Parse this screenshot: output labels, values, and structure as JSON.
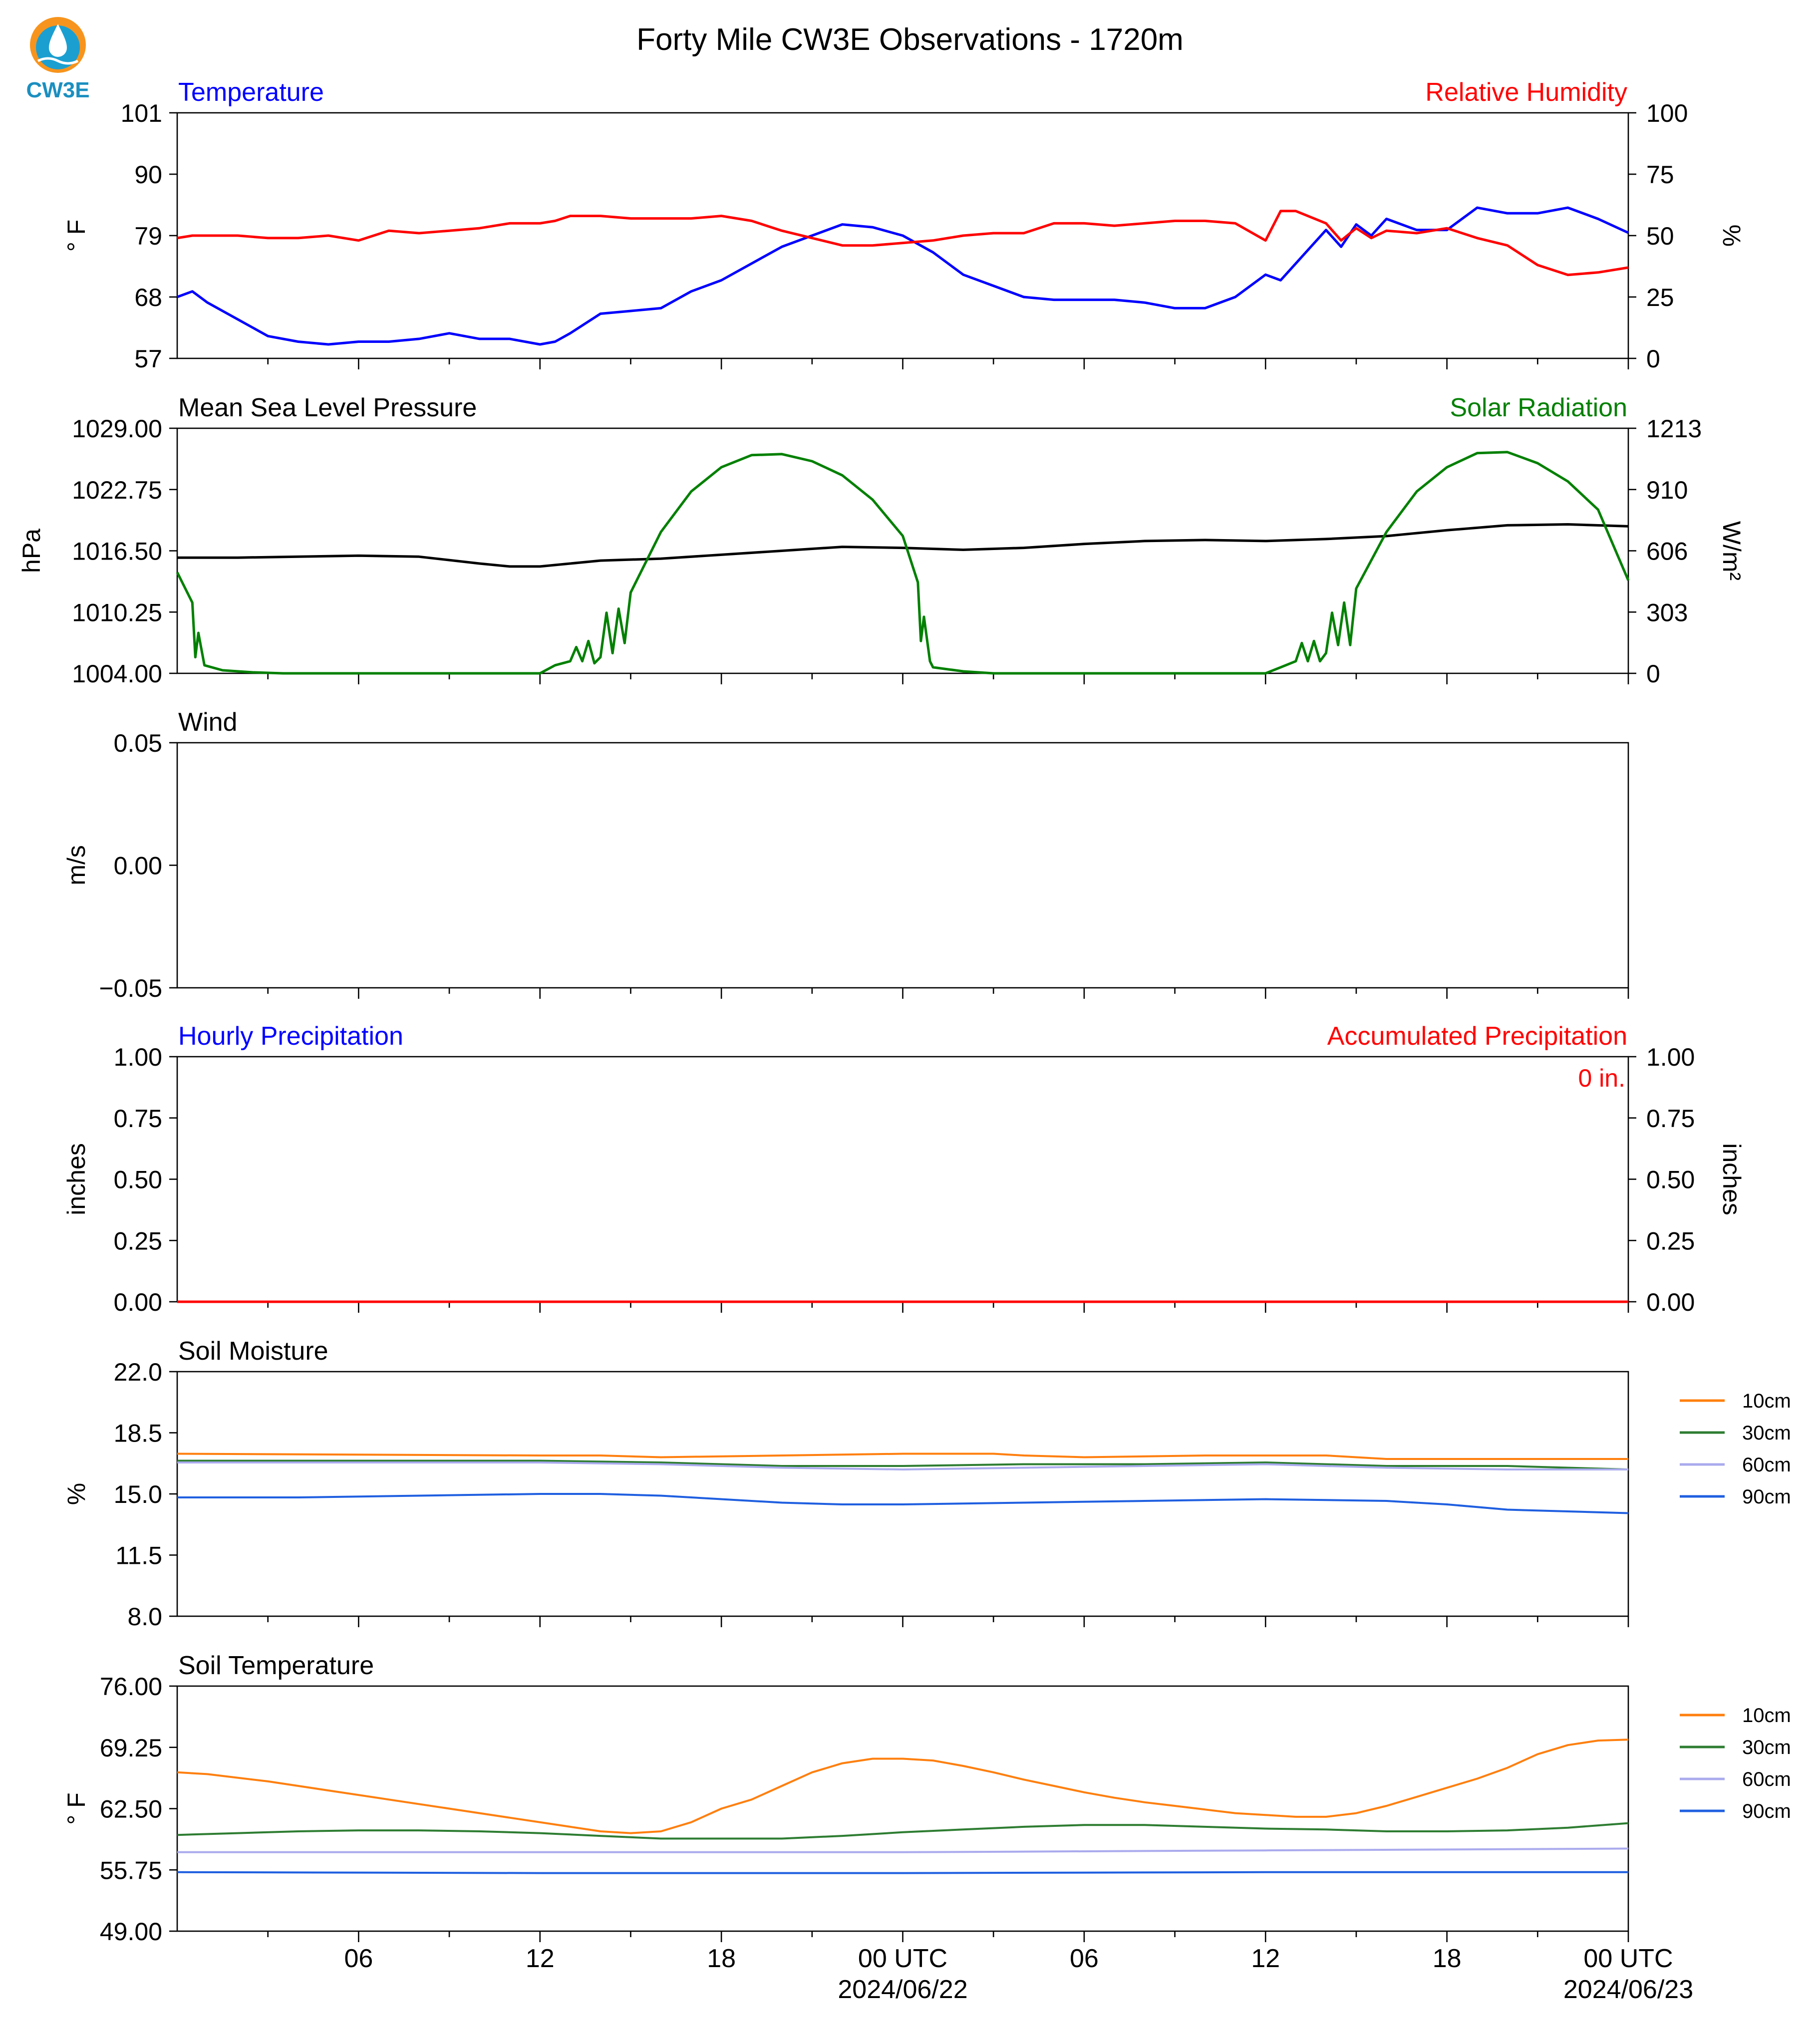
{
  "header": {
    "logo_text": "CW3E",
    "title": "Forty Mile CW3E Observations - 1720m"
  },
  "x_axis": {
    "ticks": [
      "06",
      "12",
      "18",
      "00 UTC",
      "06",
      "12",
      "18",
      "00 UTC"
    ],
    "dates": [
      "2024/06/22",
      "2024/06/23"
    ],
    "range_hours": [
      0,
      48
    ]
  },
  "chart_data": [
    {
      "type": "line",
      "title_left": "Temperature",
      "title_right": "Relative Humidity",
      "ylabel_left": "° F",
      "ylabel_right": "%",
      "ylim_left": [
        57,
        101
      ],
      "yticks_left": [
        "101",
        "90",
        "79",
        "68",
        "57"
      ],
      "ylim_right": [
        0,
        100
      ],
      "yticks_right": [
        "100",
        "75",
        "50",
        "25",
        "0"
      ],
      "x_hours": [
        0,
        0.5,
        1,
        2,
        3,
        4,
        5,
        6,
        7,
        8,
        9,
        10,
        11,
        12,
        12.5,
        13,
        14,
        15,
        16,
        17,
        18,
        19,
        20,
        21,
        22,
        23,
        24,
        25,
        26,
        27,
        28,
        29,
        30,
        31,
        32,
        33,
        34,
        35,
        36,
        36.5,
        37,
        38,
        38.5,
        39,
        39.5,
        40,
        41,
        42,
        43,
        44,
        45,
        46,
        47,
        48
      ],
      "series": [
        {
          "name": "Temperature",
          "axis": "left",
          "color": "#0000ff",
          "values": [
            68,
            69,
            67,
            64,
            61,
            60,
            59.5,
            60,
            60,
            60.5,
            61.5,
            60.5,
            60.5,
            59.5,
            60,
            61.5,
            65,
            65.5,
            66,
            69,
            71,
            74,
            77,
            79,
            81,
            80.5,
            79,
            76,
            72,
            70,
            68,
            67.5,
            67.5,
            67.5,
            67,
            66,
            66,
            68,
            72,
            71,
            74,
            80,
            77,
            81,
            79,
            82,
            80,
            80,
            84,
            83,
            83,
            84,
            82,
            79.5
          ]
        },
        {
          "name": "Relative Humidity",
          "axis": "right",
          "color": "#ff0000",
          "values": [
            49,
            50,
            50,
            50,
            49,
            49,
            50,
            48,
            52,
            51,
            52,
            53,
            55,
            55,
            56,
            58,
            58,
            57,
            57,
            57,
            58,
            56,
            52,
            49,
            46,
            46,
            47,
            48,
            50,
            51,
            51,
            55,
            55,
            54,
            55,
            56,
            56,
            55,
            48,
            60,
            60,
            55,
            48,
            53,
            49,
            52,
            51,
            53,
            49,
            46,
            38,
            34,
            35,
            37
          ]
        }
      ]
    },
    {
      "type": "line",
      "title_left": "Mean Sea Level Pressure",
      "title_right": "Solar Radiation",
      "ylabel_left": "hPa",
      "ylabel_right": "W/m²",
      "ylim_left": [
        1004.0,
        1029.0
      ],
      "yticks_left": [
        "1029.00",
        "1022.75",
        "1016.50",
        "1010.25",
        "1004.00"
      ],
      "ylim_right": [
        0,
        1213
      ],
      "yticks_right": [
        "1213",
        "910",
        "606",
        "303",
        "0"
      ],
      "series": [
        {
          "name": "Mean Sea Level Pressure",
          "axis": "left",
          "color": "#000000",
          "x": [
            0,
            2,
            4,
            6,
            8,
            10,
            11,
            12,
            13,
            14,
            16,
            18,
            20,
            22,
            24,
            26,
            28,
            30,
            32,
            34,
            36,
            38,
            40,
            42,
            44,
            46,
            48
          ],
          "values": [
            1015.8,
            1015.8,
            1015.9,
            1016.0,
            1015.9,
            1015.2,
            1014.9,
            1014.9,
            1015.2,
            1015.5,
            1015.7,
            1016.1,
            1016.5,
            1016.9,
            1016.8,
            1016.6,
            1016.8,
            1017.2,
            1017.5,
            1017.6,
            1017.5,
            1017.7,
            1018.0,
            1018.6,
            1019.1,
            1019.2,
            1019.0
          ]
        },
        {
          "name": "Solar Radiation",
          "axis": "right",
          "color": "#008000",
          "x": [
            0,
            0.5,
            0.6,
            0.7,
            0.9,
            1.5,
            2.5,
            3.5,
            12,
            12.5,
            13,
            13.2,
            13.4,
            13.6,
            13.8,
            14,
            14.2,
            14.4,
            14.6,
            14.8,
            15,
            16,
            17,
            18,
            19,
            20,
            21,
            22,
            23,
            24,
            24.5,
            24.6,
            24.7,
            24.9,
            25,
            26,
            27,
            28,
            36,
            36.5,
            37,
            37.2,
            37.4,
            37.6,
            37.8,
            38,
            38.2,
            38.4,
            38.6,
            38.8,
            39,
            40,
            41,
            42,
            43,
            44,
            45,
            46,
            47,
            48
          ],
          "values": [
            500,
            350,
            80,
            200,
            40,
            15,
            5,
            0,
            0,
            40,
            60,
            130,
            60,
            160,
            50,
            80,
            300,
            100,
            320,
            150,
            400,
            700,
            900,
            1020,
            1080,
            1085,
            1050,
            980,
            860,
            680,
            450,
            160,
            280,
            60,
            30,
            10,
            0,
            0,
            0,
            30,
            60,
            150,
            60,
            160,
            60,
            100,
            300,
            140,
            350,
            140,
            420,
            700,
            900,
            1020,
            1090,
            1095,
            1040,
            950,
            810,
            460
          ]
        }
      ]
    },
    {
      "type": "line",
      "title_left": "Wind",
      "ylabel_left": "m/s",
      "ylim_left": [
        -0.055,
        0.055
      ],
      "yticks_left": [
        "0.05",
        "0.00",
        "−0.05"
      ],
      "series": []
    },
    {
      "type": "line",
      "title_left": "Hourly Precipitation",
      "title_right": "Accumulated Precipitation",
      "ylabel_left": "inches",
      "ylabel_right": "inches",
      "ylim_left": [
        0,
        1
      ],
      "yticks_left": [
        "1.00",
        "0.75",
        "0.50",
        "0.25",
        "0.00"
      ],
      "ylim_right": [
        0,
        1
      ],
      "yticks_right": [
        "1.00",
        "0.75",
        "0.50",
        "0.25",
        "0.00"
      ],
      "annotation": "0 in.",
      "series": [
        {
          "name": "Hourly Precipitation",
          "axis": "left",
          "color": "#0000ff",
          "x": [
            0,
            48
          ],
          "values": [
            0,
            0
          ]
        },
        {
          "name": "Accumulated Precipitation",
          "axis": "right",
          "color": "#ff0000",
          "x": [
            0,
            48
          ],
          "values": [
            0,
            0
          ]
        }
      ]
    },
    {
      "type": "line",
      "title_left": "Soil Moisture",
      "ylabel_left": "%",
      "ylim_left": [
        8.0,
        22.0
      ],
      "yticks_left": [
        "22.0",
        "18.5",
        "15.0",
        "11.5",
        "8.0"
      ],
      "legend": [
        "10cm",
        "30cm",
        "60cm",
        "90cm"
      ],
      "legend_position": "outside-right",
      "series": [
        {
          "name": "10cm",
          "color": "#ff7f0e",
          "x": [
            0,
            12,
            14,
            16,
            20,
            24,
            27,
            28,
            30,
            34,
            38,
            40,
            44,
            48
          ],
          "values": [
            17.3,
            17.2,
            17.2,
            17.1,
            17.2,
            17.3,
            17.3,
            17.2,
            17.1,
            17.2,
            17.2,
            17.0,
            17.0,
            17.0
          ]
        },
        {
          "name": "30cm",
          "color": "#2e7d32",
          "x": [
            0,
            6,
            12,
            16,
            20,
            24,
            28,
            32,
            36,
            40,
            44,
            48
          ],
          "values": [
            16.9,
            16.9,
            16.9,
            16.8,
            16.6,
            16.6,
            16.7,
            16.7,
            16.8,
            16.6,
            16.6,
            16.4
          ]
        },
        {
          "name": "60cm",
          "color": "#aaaaee",
          "x": [
            0,
            6,
            12,
            16,
            20,
            24,
            28,
            32,
            36,
            40,
            44,
            48
          ],
          "values": [
            16.8,
            16.8,
            16.8,
            16.7,
            16.5,
            16.4,
            16.5,
            16.6,
            16.7,
            16.5,
            16.4,
            16.4
          ]
        },
        {
          "name": "90cm",
          "color": "#1f5fe0",
          "x": [
            0,
            4,
            8,
            12,
            14,
            16,
            18,
            20,
            22,
            24,
            28,
            32,
            36,
            40,
            42,
            44,
            46,
            48
          ],
          "values": [
            14.8,
            14.8,
            14.9,
            15.0,
            15.0,
            14.9,
            14.7,
            14.5,
            14.4,
            14.4,
            14.5,
            14.6,
            14.7,
            14.6,
            14.4,
            14.1,
            14.0,
            13.9
          ]
        }
      ]
    },
    {
      "type": "line",
      "title_left": "Soil Temperature",
      "ylabel_left": "° F",
      "ylim_left": [
        49.0,
        76.0
      ],
      "yticks_left": [
        "76.00",
        "69.25",
        "62.50",
        "55.75",
        "49.00"
      ],
      "legend": [
        "10cm",
        "30cm",
        "60cm",
        "90cm"
      ],
      "legend_position": "outside-right",
      "series": [
        {
          "name": "10cm",
          "color": "#ff7f0e",
          "x": [
            0,
            1,
            3,
            5,
            7,
            9,
            11,
            13,
            14,
            15,
            16,
            17,
            18,
            19,
            20,
            21,
            22,
            23,
            24,
            25,
            26,
            27,
            28,
            29,
            30,
            31,
            32,
            33,
            34,
            35,
            36,
            37,
            38,
            39,
            40,
            41,
            42,
            43,
            44,
            45,
            46,
            47,
            48
          ],
          "values": [
            66.5,
            66.3,
            65.5,
            64.5,
            63.5,
            62.5,
            61.5,
            60.5,
            60.0,
            59.8,
            60.0,
            61.0,
            62.5,
            63.5,
            65.0,
            66.5,
            67.5,
            68.0,
            68.0,
            67.8,
            67.2,
            66.5,
            65.7,
            65.0,
            64.3,
            63.7,
            63.2,
            62.8,
            62.4,
            62.0,
            61.8,
            61.6,
            61.6,
            62.0,
            62.8,
            63.8,
            64.8,
            65.8,
            67.0,
            68.5,
            69.5,
            70.0,
            70.1
          ]
        },
        {
          "name": "30cm",
          "color": "#2e7d32",
          "x": [
            0,
            2,
            4,
            6,
            8,
            10,
            12,
            14,
            16,
            18,
            20,
            22,
            24,
            26,
            28,
            30,
            32,
            34,
            36,
            38,
            40,
            42,
            44,
            46,
            48
          ],
          "values": [
            59.6,
            59.8,
            60.0,
            60.1,
            60.1,
            60.0,
            59.8,
            59.5,
            59.2,
            59.2,
            59.2,
            59.5,
            59.9,
            60.2,
            60.5,
            60.7,
            60.7,
            60.5,
            60.3,
            60.2,
            60.0,
            60.0,
            60.1,
            60.4,
            60.9
          ]
        },
        {
          "name": "60cm",
          "color": "#aaaaee",
          "x": [
            0,
            12,
            24,
            36,
            48
          ],
          "values": [
            57.7,
            57.7,
            57.7,
            57.9,
            58.1
          ]
        },
        {
          "name": "90cm",
          "color": "#1f5fe0",
          "x": [
            0,
            12,
            24,
            36,
            48
          ],
          "values": [
            55.5,
            55.4,
            55.4,
            55.5,
            55.5
          ]
        }
      ]
    }
  ]
}
